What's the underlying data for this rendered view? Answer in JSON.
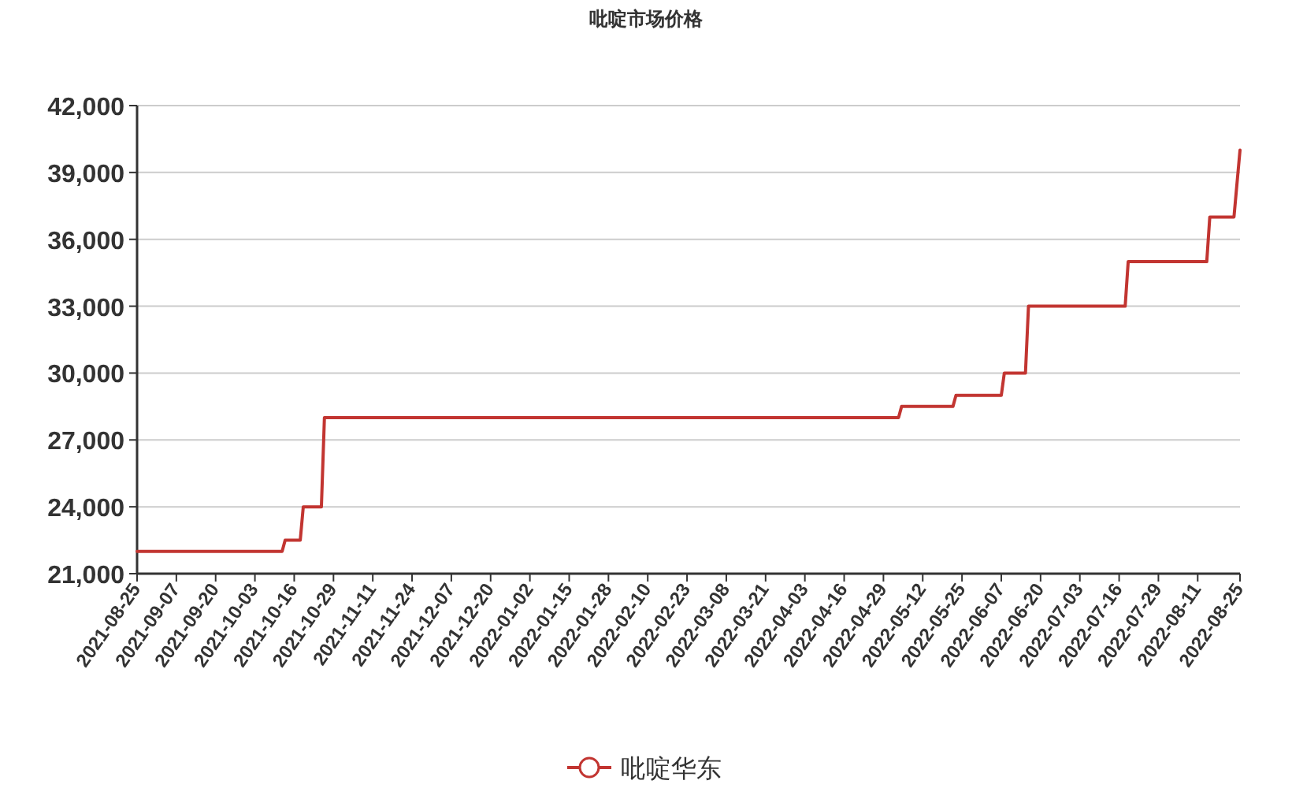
{
  "chart_data": {
    "type": "line",
    "title": "吡啶市场价格",
    "x": [
      "2021-08-25",
      "2021-10-12",
      "2021-10-13",
      "2021-10-18",
      "2021-10-19",
      "2021-10-25",
      "2021-10-26",
      "2022-05-04",
      "2022-05-05",
      "2022-05-22",
      "2022-05-23",
      "2022-06-07",
      "2022-06-08",
      "2022-06-15",
      "2022-06-16",
      "2022-07-18",
      "2022-07-19",
      "2022-08-14",
      "2022-08-15",
      "2022-08-23",
      "2022-08-25"
    ],
    "series": [
      {
        "name": "吡啶华东",
        "color": "#c23531",
        "values": [
          22000,
          22000,
          22500,
          22500,
          24000,
          24000,
          28000,
          28000,
          28500,
          28500,
          29000,
          29000,
          30000,
          30000,
          33000,
          33000,
          35000,
          35000,
          37000,
          37000,
          40000
        ]
      }
    ],
    "xlim": [
      "2021-08-25",
      "2022-08-25"
    ],
    "xticks": [
      "2021-08-25",
      "2021-09-07",
      "2021-09-20",
      "2021-10-03",
      "2021-10-16",
      "2021-10-29",
      "2021-11-11",
      "2021-11-24",
      "2021-12-07",
      "2021-12-20",
      "2022-01-02",
      "2022-01-15",
      "2022-01-28",
      "2022-02-10",
      "2022-02-23",
      "2022-03-08",
      "2022-03-21",
      "2022-04-03",
      "2022-04-16",
      "2022-04-29",
      "2022-05-12",
      "2022-05-25",
      "2022-06-07",
      "2022-06-20",
      "2022-07-03",
      "2022-07-16",
      "2022-07-29",
      "2022-08-11",
      "2022-08-25"
    ],
    "ylim": [
      21000,
      42000
    ],
    "yticks": [
      {
        "value": 21000,
        "label": "21,000"
      },
      {
        "value": 24000,
        "label": "24,000"
      },
      {
        "value": 27000,
        "label": "27,000"
      },
      {
        "value": 30000,
        "label": "30,000"
      },
      {
        "value": 33000,
        "label": "33,000"
      },
      {
        "value": 36000,
        "label": "36,000"
      },
      {
        "value": 39000,
        "label": "39,000"
      },
      {
        "value": 42000,
        "label": "42,000"
      }
    ],
    "grid": "y",
    "legend": "bottom"
  }
}
